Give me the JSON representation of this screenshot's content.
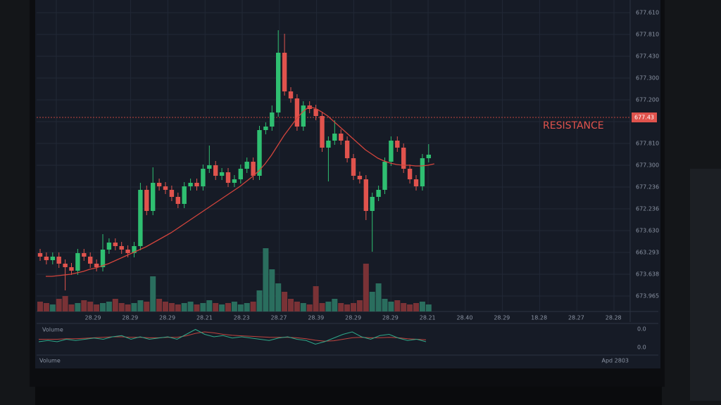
{
  "chart_data": {
    "type": "candlestick",
    "price_labels": [
      "677.610",
      "677.810",
      "677.430",
      "677.300",
      "677.200",
      "677.810",
      "677.300",
      "677.236",
      "672.236",
      "673.630",
      "663.293",
      "673.638",
      "673.965"
    ],
    "x_labels": [
      "28.29",
      "28.29",
      "28.29",
      "28.21",
      "28.23",
      "28.27",
      "28.39",
      "28.29",
      "28.29",
      "28.21",
      "28.40",
      "28.29",
      "18.28",
      "28.27",
      "28.28"
    ],
    "ylim": [
      0,
      443
    ],
    "open": [
      83,
      78,
      73,
      78,
      68,
      63,
      58,
      83,
      78,
      68,
      63,
      88,
      98,
      93,
      88,
      83,
      93,
      173,
      143,
      183,
      178,
      173,
      163,
      153,
      178,
      183,
      178,
      203,
      208,
      193,
      198,
      183,
      188,
      203,
      213,
      193,
      258,
      263,
      283,
      368,
      313,
      303,
      263,
      293,
      288,
      278,
      233,
      243,
      253,
      243,
      218,
      193,
      188,
      143,
      163,
      173,
      213,
      243,
      233,
      203,
      188,
      178,
      218
    ],
    "high": [
      89,
      84,
      84,
      84,
      74,
      69,
      89,
      89,
      84,
      74,
      110,
      104,
      104,
      99,
      94,
      99,
      183,
      179,
      205,
      189,
      184,
      179,
      169,
      184,
      189,
      189,
      209,
      236,
      214,
      204,
      204,
      194,
      209,
      219,
      219,
      264,
      269,
      293,
      400,
      395,
      319,
      309,
      299,
      299,
      294,
      284,
      249,
      272,
      259,
      249,
      224,
      199,
      194,
      169,
      179,
      219,
      249,
      249,
      239,
      209,
      194,
      224,
      238
    ],
    "low": [
      72,
      67,
      67,
      62,
      30,
      52,
      52,
      72,
      62,
      57,
      57,
      82,
      87,
      82,
      77,
      77,
      87,
      137,
      137,
      172,
      167,
      157,
      147,
      147,
      172,
      172,
      172,
      197,
      187,
      187,
      177,
      177,
      182,
      197,
      187,
      187,
      252,
      257,
      277,
      307,
      297,
      257,
      257,
      282,
      272,
      227,
      185,
      237,
      237,
      212,
      187,
      182,
      130,
      85,
      157,
      167,
      207,
      227,
      197,
      182,
      172,
      172,
      212
    ],
    "close": [
      78,
      73,
      78,
      68,
      63,
      58,
      83,
      78,
      68,
      63,
      88,
      98,
      93,
      88,
      83,
      93,
      173,
      143,
      183,
      178,
      173,
      163,
      153,
      178,
      183,
      178,
      203,
      208,
      193,
      198,
      183,
      188,
      203,
      213,
      193,
      258,
      263,
      283,
      368,
      313,
      303,
      263,
      293,
      288,
      278,
      233,
      243,
      253,
      243,
      218,
      193,
      188,
      143,
      163,
      173,
      213,
      243,
      233,
      203,
      188,
      178,
      218,
      223
    ],
    "moving_average": [
      50,
      50,
      51,
      52,
      53,
      55,
      57,
      60,
      62,
      65,
      68,
      72,
      76,
      80,
      84,
      88,
      92,
      97,
      102,
      107,
      112,
      118,
      124,
      130,
      136,
      142,
      148,
      154,
      160,
      166,
      172,
      178,
      185,
      192,
      200,
      210,
      222,
      236,
      250,
      262,
      274,
      284,
      291,
      289,
      284,
      278,
      270,
      262,
      254,
      246,
      238,
      230,
      224,
      218,
      214,
      211,
      209,
      208,
      208,
      207,
      207,
      208,
      210
    ],
    "volume_ylim": [
      0,
      100
    ],
    "volume": [
      14,
      12,
      10,
      18,
      22,
      10,
      12,
      16,
      14,
      10,
      12,
      14,
      18,
      12,
      10,
      12,
      16,
      14,
      50,
      18,
      14,
      12,
      10,
      12,
      14,
      10,
      12,
      16,
      12,
      10,
      12,
      14,
      10,
      12,
      14,
      30,
      90,
      60,
      40,
      28,
      18,
      14,
      12,
      10,
      36,
      12,
      14,
      18,
      12,
      10,
      12,
      16,
      68,
      28,
      40,
      18,
      14,
      16,
      12,
      10,
      12,
      14,
      10
    ],
    "indicator_ylim": [
      0,
      10
    ],
    "indicator_fast": [
      4,
      4.5,
      4,
      5,
      4.5,
      5,
      5.5,
      5,
      6,
      6.5,
      5,
      6,
      5,
      5.5,
      6,
      5,
      7,
      9,
      7,
      6,
      6.5,
      5.5,
      6,
      5.5,
      5,
      4.5,
      5.5,
      6,
      5,
      4.5,
      3,
      4,
      5.5,
      7,
      8,
      6,
      5,
      6.5,
      7,
      5.5,
      4.5,
      5,
      4
    ],
    "indicator_slow": [
      5,
      5,
      5,
      5.2,
      5.2,
      5.4,
      5.6,
      5.8,
      6,
      6,
      5.8,
      5.8,
      5.6,
      5.6,
      5.8,
      5.8,
      6.4,
      7.4,
      8,
      7.6,
      7,
      6.6,
      6.4,
      6.2,
      6,
      5.8,
      5.8,
      5.8,
      5.6,
      5.2,
      4.6,
      4.2,
      4.4,
      5,
      5.6,
      5.8,
      5.6,
      5.6,
      5.8,
      5.6,
      5.2,
      5,
      4.8
    ],
    "panel_label": "Volume",
    "panel_ticks": [
      "0.0",
      "0.0"
    ],
    "footer_left": "Volume",
    "footer_right": "Apd 2803",
    "resistance": {
      "label": "RESISTANCE",
      "price_label": "677.43",
      "level": 276
    }
  }
}
